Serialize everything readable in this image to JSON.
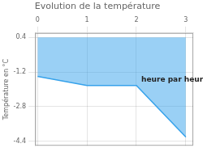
{
  "chart_data": {
    "type": "line",
    "title": "Evolution de la température",
    "ylabel": "Température en °C",
    "annotation": {
      "text": "heure par heure",
      "x": 2.1,
      "y": -1.4
    },
    "x": [
      0,
      1,
      2,
      3
    ],
    "values": [
      -1.4,
      -1.82,
      -1.82,
      -4.2
    ],
    "baseline": 0.4,
    "xlim": [
      -0.05,
      3.15
    ],
    "ylim": [
      -4.6,
      0.6
    ],
    "xticks": [
      0,
      1,
      2,
      3
    ],
    "yticks": [
      0.4,
      -1.2,
      -2.8,
      -4.4
    ],
    "grid": true
  }
}
